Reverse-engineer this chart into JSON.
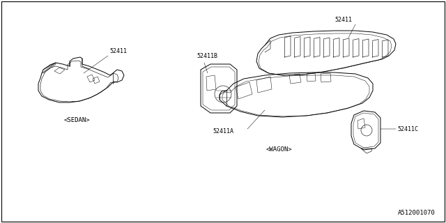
{
  "background_color": "#ffffff",
  "border_color": "#000000",
  "diagram_id": "A512001070",
  "sedan_label": "<SEDAN>",
  "wagon_label": "<WAGON>",
  "parts": {
    "sedan_part": "52411",
    "wagon_main": "52411",
    "wagon_a": "52411A",
    "wagon_b": "52411B",
    "wagon_c": "52411C"
  },
  "line_color": "#000000",
  "line_width": 0.7,
  "font_size_label": 6.5,
  "font_size_part": 6.0,
  "font_size_diagram_id": 6.5
}
